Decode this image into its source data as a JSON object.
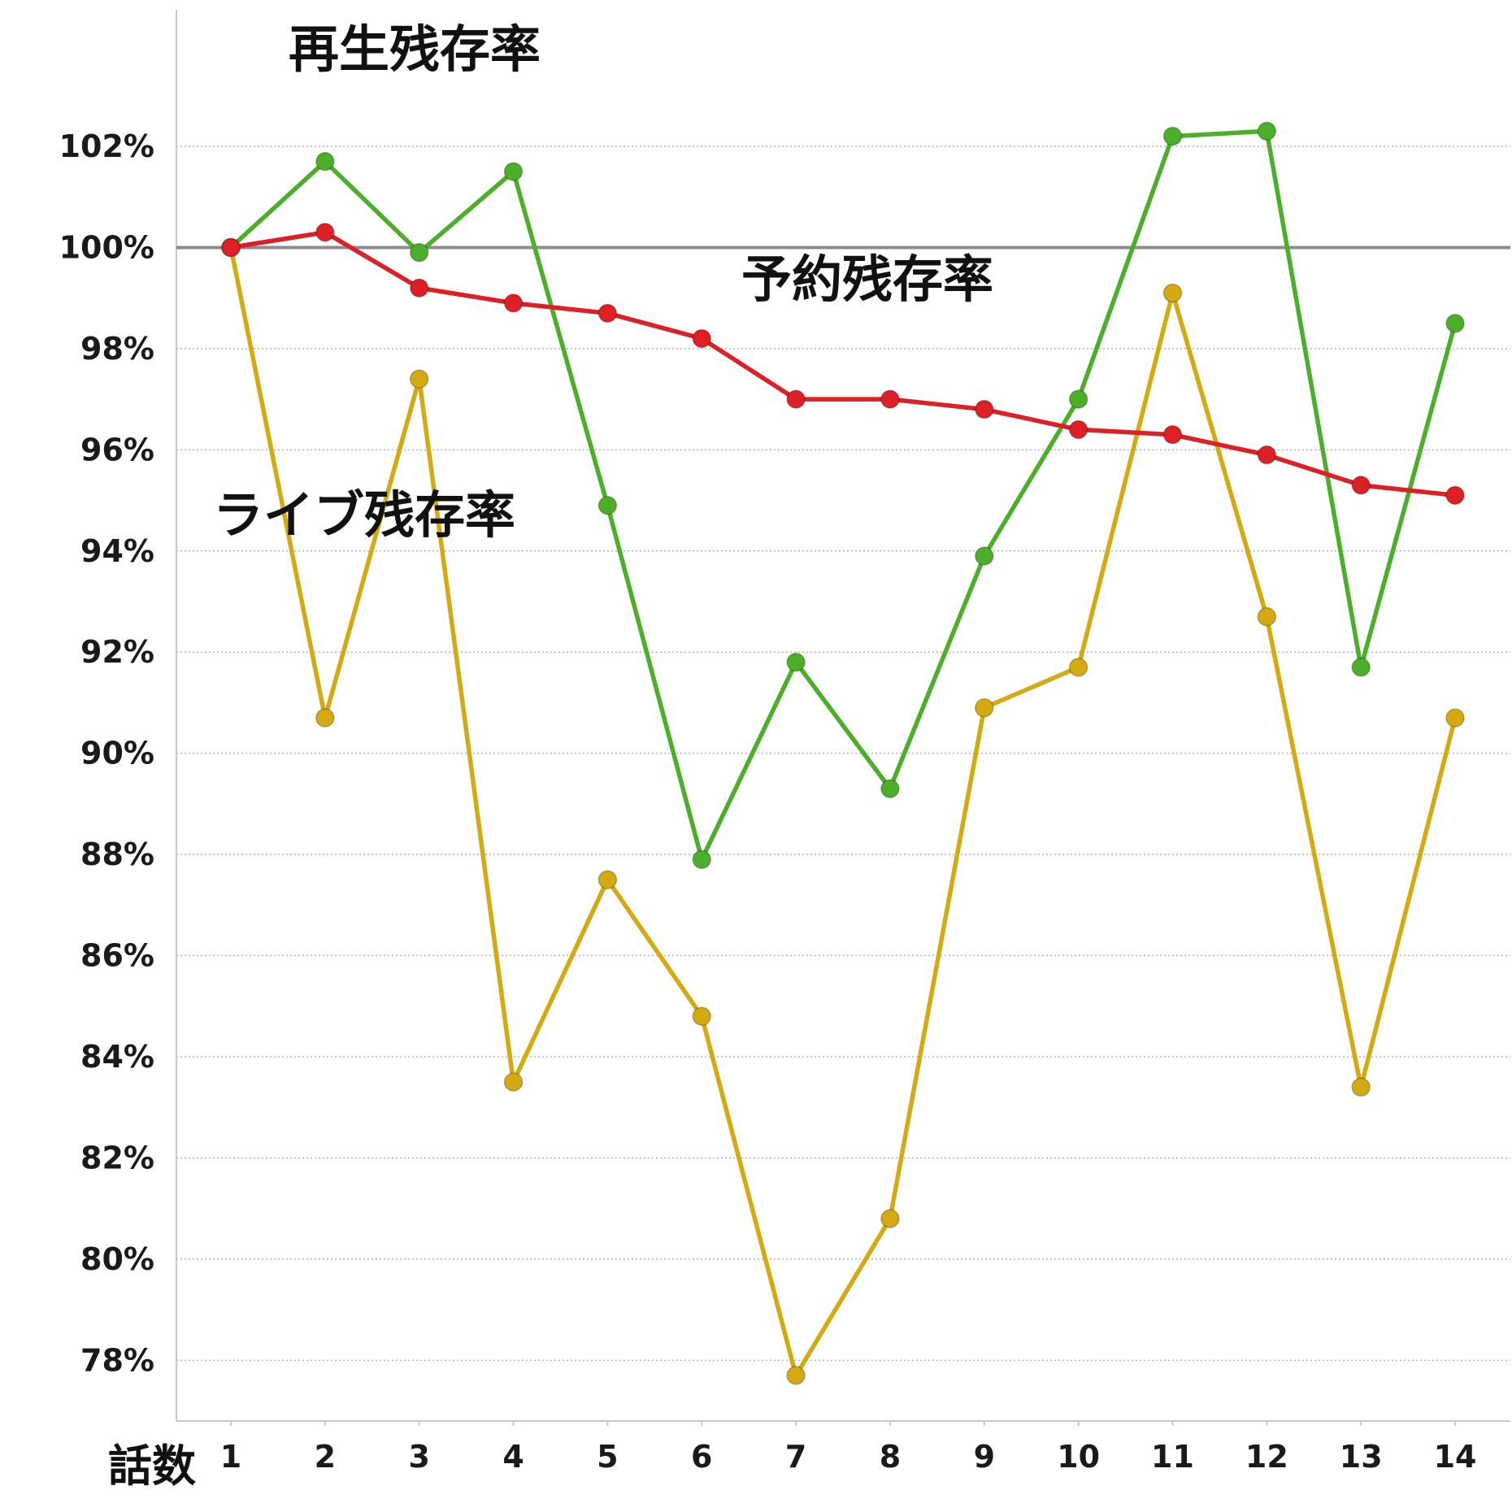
{
  "chart_data": {
    "type": "line",
    "xlabel": "話数",
    "ylabel": "",
    "categories": [
      "1",
      "2",
      "3",
      "4",
      "5",
      "6",
      "7",
      "8",
      "9",
      "10",
      "11",
      "12",
      "13",
      "14"
    ],
    "ylim": [
      76.8,
      104.7
    ],
    "yticks": [
      78,
      80,
      82,
      84,
      86,
      88,
      90,
      92,
      94,
      96,
      98,
      100,
      102
    ],
    "ytick_labels": [
      "78%",
      "80%",
      "82%",
      "84%",
      "86%",
      "88%",
      "90%",
      "92%",
      "94%",
      "96%",
      "98%",
      "100%",
      "102%"
    ],
    "reference_line": 100,
    "grid": "horizontal dotted",
    "series": [
      {
        "name": "再生残存率",
        "color": "#4caf2a",
        "values": [
          100.0,
          101.7,
          99.9,
          101.5,
          94.9,
          87.9,
          91.8,
          89.3,
          93.9,
          97.0,
          102.2,
          102.3,
          91.7,
          98.5
        ]
      },
      {
        "name": "予約残存率",
        "color": "#dd1f26",
        "values": [
          100.0,
          100.3,
          99.2,
          98.9,
          98.7,
          98.2,
          97.0,
          97.0,
          96.8,
          96.4,
          96.3,
          95.9,
          95.3,
          95.1
        ]
      },
      {
        "name": "ライブ残存率",
        "color": "#d4aa10",
        "values": [
          100.0,
          90.7,
          97.4,
          83.5,
          87.5,
          84.8,
          77.7,
          80.8,
          90.9,
          91.7,
          99.1,
          92.7,
          83.4,
          90.7
        ]
      }
    ]
  }
}
